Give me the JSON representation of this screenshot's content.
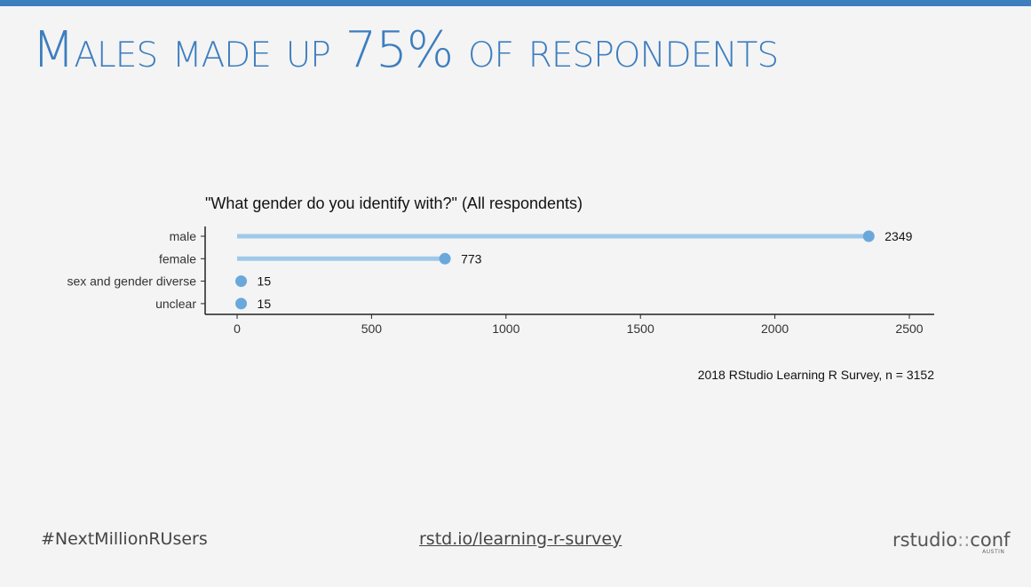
{
  "slide": {
    "title": "Males made up 75% of respondents"
  },
  "footer": {
    "hashtag": "#NextMillionRUsers",
    "link": "rstd.io/learning-r-survey",
    "logo_main": "rstudio",
    "logo_sep": "::",
    "logo_conf": "conf",
    "logo_sub": "AUSTIN"
  },
  "colors": {
    "accent": "#3d7ebf",
    "segment": "#9ec9ea",
    "point": "#6aa8dc"
  },
  "chart_data": {
    "type": "lollipop",
    "title": "\"What gender do you identify with?\" (All respondents)",
    "caption": "2018 RStudio Learning R Survey, n = 3152",
    "xlabel": "",
    "ylabel": "",
    "categories": [
      "male",
      "female",
      "sex and gender diverse",
      "unclear"
    ],
    "values": [
      2349,
      773,
      15,
      15
    ],
    "data_labels": [
      "2349",
      "773",
      "15",
      "15"
    ],
    "xlim": [
      0,
      2580
    ],
    "xticks": [
      0,
      500,
      1000,
      1500,
      2000,
      2500
    ],
    "grid": false
  }
}
